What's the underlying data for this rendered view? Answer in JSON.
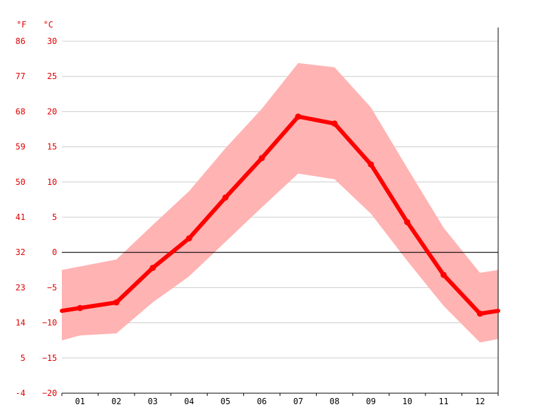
{
  "chart_data": {
    "type": "area",
    "categories": [
      "01",
      "02",
      "03",
      "04",
      "05",
      "06",
      "07",
      "08",
      "09",
      "10",
      "11",
      "12"
    ],
    "series": [
      {
        "values": [
          -7.9,
          -7.1,
          -2.2,
          2.0,
          7.8,
          13.4,
          19.3,
          18.3,
          12.5,
          4.3,
          -3.2,
          -8.7
        ]
      },
      {
        "values": [
          -2.0,
          -1.0,
          3.9,
          8.7,
          14.8,
          20.4,
          26.9,
          26.3,
          20.6,
          12.0,
          3.5,
          -2.9
        ]
      },
      {
        "values": [
          -11.8,
          -11.5,
          -7.1,
          -3.4,
          1.5,
          6.4,
          11.2,
          10.4,
          5.5,
          -1.2,
          -7.6,
          -12.8
        ]
      }
    ],
    "x_extension": {
      "left_value": -8.3,
      "right_value": -8.3,
      "left_upper": -2.5,
      "right_upper": -2.5,
      "left_lower": -12.5,
      "right_lower": -12.3
    },
    "ylabel_left": "°F",
    "ylabel_right": "°C",
    "ylim": [
      -20,
      30
    ],
    "yticks_c": [
      "30",
      "25",
      "20",
      "15",
      "10",
      "5",
      "0",
      "−5",
      "−10",
      "−15",
      "−20"
    ],
    "yticks_f": [
      "86",
      "77",
      "68",
      "59",
      "50",
      "41",
      "32",
      "23",
      "14",
      "5",
      "-4"
    ],
    "grid": true,
    "colors": {
      "line": "#ff0000",
      "band": "#ffb3b3",
      "zero": "#000000",
      "grid": "#cccccc",
      "axis_text": "#e00000"
    }
  }
}
